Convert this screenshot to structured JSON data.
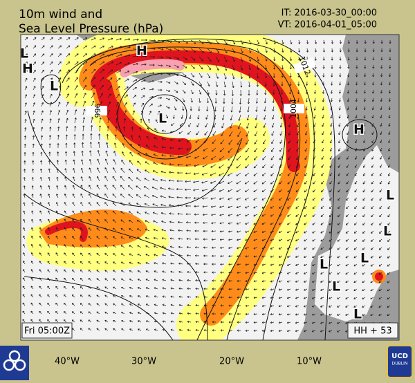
{
  "header": {
    "title": [
      "10m wind and",
      "Sea Level Pressure (hPa)"
    ],
    "init_time": "IT: 2016-03-30_00:00",
    "valid_time": "VT: 2016-04-01_05:00"
  },
  "map": {
    "pressure_labels": [
      "966",
      "1004",
      "1012"
    ],
    "centers": [
      "L",
      "H",
      "L",
      "H",
      "L",
      "H",
      "L",
      "L",
      "L",
      "L",
      "L",
      "L"
    ],
    "footer_left": "Fri 05:00Z",
    "footer_right": "HH + 53"
  },
  "axis": {
    "longitude_labels": [
      "40°W",
      "30°W",
      "20°W",
      "10°W"
    ]
  },
  "logo": {
    "text": [
      "UCD",
      "DUBLIN"
    ]
  }
}
